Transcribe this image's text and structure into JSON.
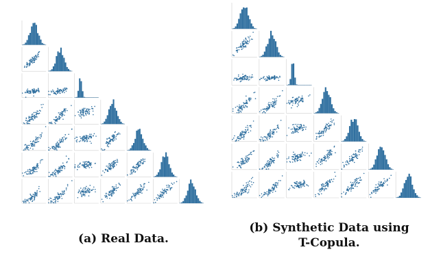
{
  "figure": {
    "captions": {
      "a": "(a) Real Data.",
      "b_line1": "(b) Synthetic Data using",
      "b_line2": "T-Copula."
    },
    "colors": {
      "mark": "#2f6f9f",
      "axis": "#cfcfcf",
      "label": "#8a8a8a"
    }
  },
  "chart_data": [
    {
      "type": "scatter",
      "title": "",
      "layout": "lower-triangular pair plot (7×7): histograms on diagonal, scatter plots below",
      "variables": 7,
      "diagonal": "histogram",
      "panel": "a"
    },
    {
      "type": "scatter",
      "title": "",
      "layout": "lower-triangular pair plot (7×7): histograms on diagonal, scatter plots below",
      "variables": 7,
      "diagonal": "histogram",
      "panel": "b"
    }
  ]
}
